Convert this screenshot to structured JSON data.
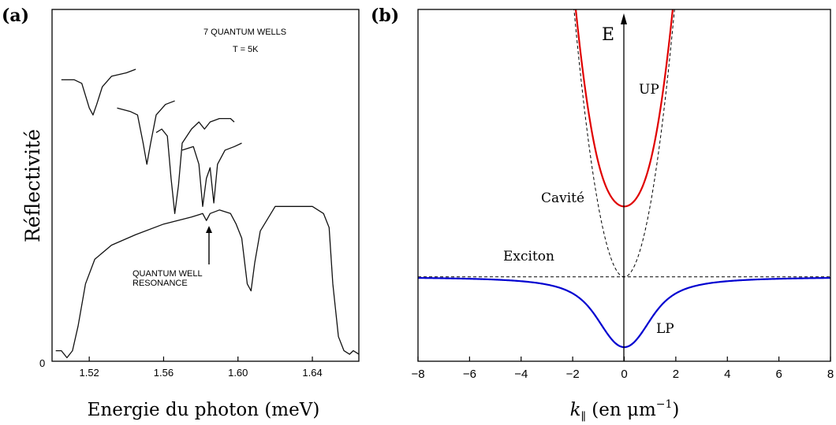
{
  "chart_data": [
    {
      "panel_label": "(a)",
      "type": "line",
      "xlabel": "Energie du photon (meV)",
      "ylabel": "Réflectivité",
      "x_ticks": [
        "1.52",
        "1.56",
        "1.60",
        "1.64"
      ],
      "y_ticks": [
        "0"
      ],
      "xlim": [
        1.5,
        1.665
      ],
      "annotations": [
        "7 QUANTUM WELLS",
        "T = 5K",
        "QUANTUM WELL",
        "RESONANCE"
      ],
      "series": [
        {
          "points": [
            [
              1.505,
              0.8
            ],
            [
              1.512,
              0.8
            ],
            [
              1.516,
              0.79
            ],
            [
              1.52,
              0.72
            ],
            [
              1.522,
              0.7
            ],
            [
              1.524,
              0.73
            ],
            [
              1.527,
              0.78
            ],
            [
              1.532,
              0.81
            ],
            [
              1.54,
              0.82
            ],
            [
              1.545,
              0.83
            ]
          ]
        },
        {
          "points": [
            [
              1.535,
              0.72
            ],
            [
              1.542,
              0.71
            ],
            [
              1.546,
              0.7
            ],
            [
              1.549,
              0.62
            ],
            [
              1.551,
              0.56
            ],
            [
              1.553,
              0.62
            ],
            [
              1.556,
              0.7
            ],
            [
              1.561,
              0.73
            ],
            [
              1.566,
              0.74
            ]
          ]
        },
        {
          "points": [
            [
              1.556,
              0.65
            ],
            [
              1.559,
              0.66
            ],
            [
              1.562,
              0.64
            ],
            [
              1.564,
              0.52
            ],
            [
              1.566,
              0.42
            ],
            [
              1.568,
              0.5
            ],
            [
              1.57,
              0.62
            ],
            [
              1.575,
              0.66
            ],
            [
              1.579,
              0.68
            ],
            [
              1.582,
              0.66
            ],
            [
              1.585,
              0.68
            ],
            [
              1.59,
              0.69
            ],
            [
              1.596,
              0.69
            ],
            [
              1.598,
              0.68
            ]
          ]
        },
        {
          "points": [
            [
              1.57,
              0.6
            ],
            [
              1.576,
              0.61
            ],
            [
              1.579,
              0.56
            ],
            [
              1.581,
              0.44
            ],
            [
              1.583,
              0.52
            ],
            [
              1.585,
              0.55
            ],
            [
              1.587,
              0.45
            ],
            [
              1.589,
              0.56
            ],
            [
              1.593,
              0.6
            ],
            [
              1.598,
              0.61
            ],
            [
              1.602,
              0.62
            ]
          ]
        },
        {
          "points": [
            [
              1.502,
              0.03
            ],
            [
              1.505,
              0.03
            ],
            [
              1.508,
              0.01
            ],
            [
              1.511,
              0.03
            ],
            [
              1.514,
              0.1
            ],
            [
              1.518,
              0.22
            ],
            [
              1.523,
              0.29
            ],
            [
              1.532,
              0.33
            ],
            [
              1.545,
              0.36
            ],
            [
              1.56,
              0.39
            ],
            [
              1.575,
              0.41
            ],
            [
              1.581,
              0.42
            ],
            [
              1.583,
              0.4
            ],
            [
              1.585,
              0.42
            ],
            [
              1.59,
              0.43
            ],
            [
              1.596,
              0.42
            ],
            [
              1.599,
              0.39
            ],
            [
              1.602,
              0.35
            ],
            [
              1.605,
              0.22
            ],
            [
              1.607,
              0.2
            ],
            [
              1.609,
              0.28
            ],
            [
              1.612,
              0.37
            ],
            [
              1.62,
              0.44
            ],
            [
              1.63,
              0.44
            ],
            [
              1.64,
              0.44
            ],
            [
              1.646,
              0.42
            ],
            [
              1.649,
              0.38
            ],
            [
              1.651,
              0.22
            ],
            [
              1.654,
              0.07
            ],
            [
              1.657,
              0.03
            ],
            [
              1.66,
              0.02
            ],
            [
              1.662,
              0.03
            ],
            [
              1.665,
              0.02
            ]
          ]
        }
      ]
    },
    {
      "panel_label": "(b)",
      "type": "line",
      "xlabel_main": "k",
      "xlabel_sub": "∥",
      "xlabel_rest": " (en μm",
      "xlabel_sup": "−1",
      "xlabel_close": ")",
      "xlim": [
        -8,
        8
      ],
      "x_ticks": [
        -8,
        -6,
        -4,
        -2,
        0,
        2,
        4,
        6,
        8
      ],
      "x_tick_labels": [
        "−8",
        "−6",
        "−4",
        "−2",
        "0",
        "2",
        "4",
        "6",
        "8"
      ],
      "y_axis_label": "E",
      "model": {
        "E_exciton": 0,
        "E_cavity_k0": 0,
        "cavity_curvature": 1,
        "rabi_half_splitting": 1,
        "ylim": [
          -1.2,
          3.8
        ]
      },
      "series": [
        {
          "name": "UP",
          "color": "#e00000",
          "style": "solid"
        },
        {
          "name": "LP",
          "color": "#0000d0",
          "style": "solid"
        },
        {
          "name": "Cavité",
          "color": "#000000",
          "style": "dashed"
        },
        {
          "name": "Exciton",
          "color": "#000000",
          "style": "dashed"
        }
      ]
    }
  ]
}
